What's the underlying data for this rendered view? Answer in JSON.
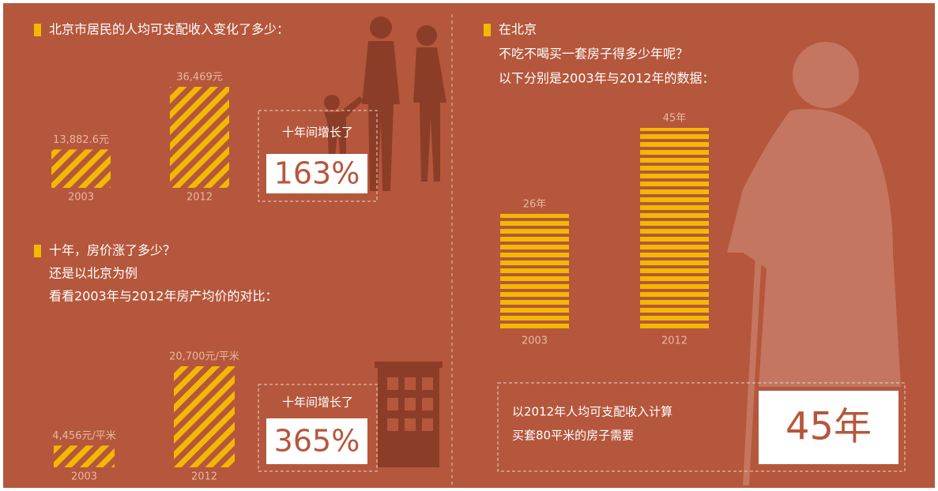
{
  "chart_data": [
    {
      "type": "bar",
      "title": [
        "北京市居民的人均可支配收入变化了多少："
      ],
      "categories": [
        "2003",
        "2012"
      ],
      "values": [
        13882.6,
        36469
      ],
      "value_labels": [
        "13,882.6元",
        "36,469元"
      ],
      "color": "#f5b800",
      "pattern": "diagonal",
      "annotation": [
        "十年间增长了",
        "163%"
      ]
    },
    {
      "type": "bar",
      "title": [
        "十年，房价涨了多少？",
        "还是以北京为例",
        "看看2003年与2012年房产均价的对比："
      ],
      "categories": [
        "2003",
        "2012"
      ],
      "values": [
        4456,
        20700
      ],
      "value_labels": [
        "4,456元/平米",
        "20,700元/平米"
      ],
      "color": "#f5b800",
      "pattern": "diagonal",
      "annotation": [
        "十年间增长了",
        "365%"
      ]
    },
    {
      "type": "bar",
      "title": [
        "在北京",
        "不吃不喝买一套房子得多少年呢？",
        "以下分别是2003年与2012年的数据："
      ],
      "categories": [
        "2003",
        "2012"
      ],
      "values": [
        26,
        45
      ],
      "value_labels": [
        "26年",
        "45年"
      ],
      "color": "#f5b800",
      "pattern": "horizontal",
      "annotation": [
        "以2012年人均可支配收入计算",
        "买套80平米的房子需要",
        "45年"
      ]
    }
  ]
}
